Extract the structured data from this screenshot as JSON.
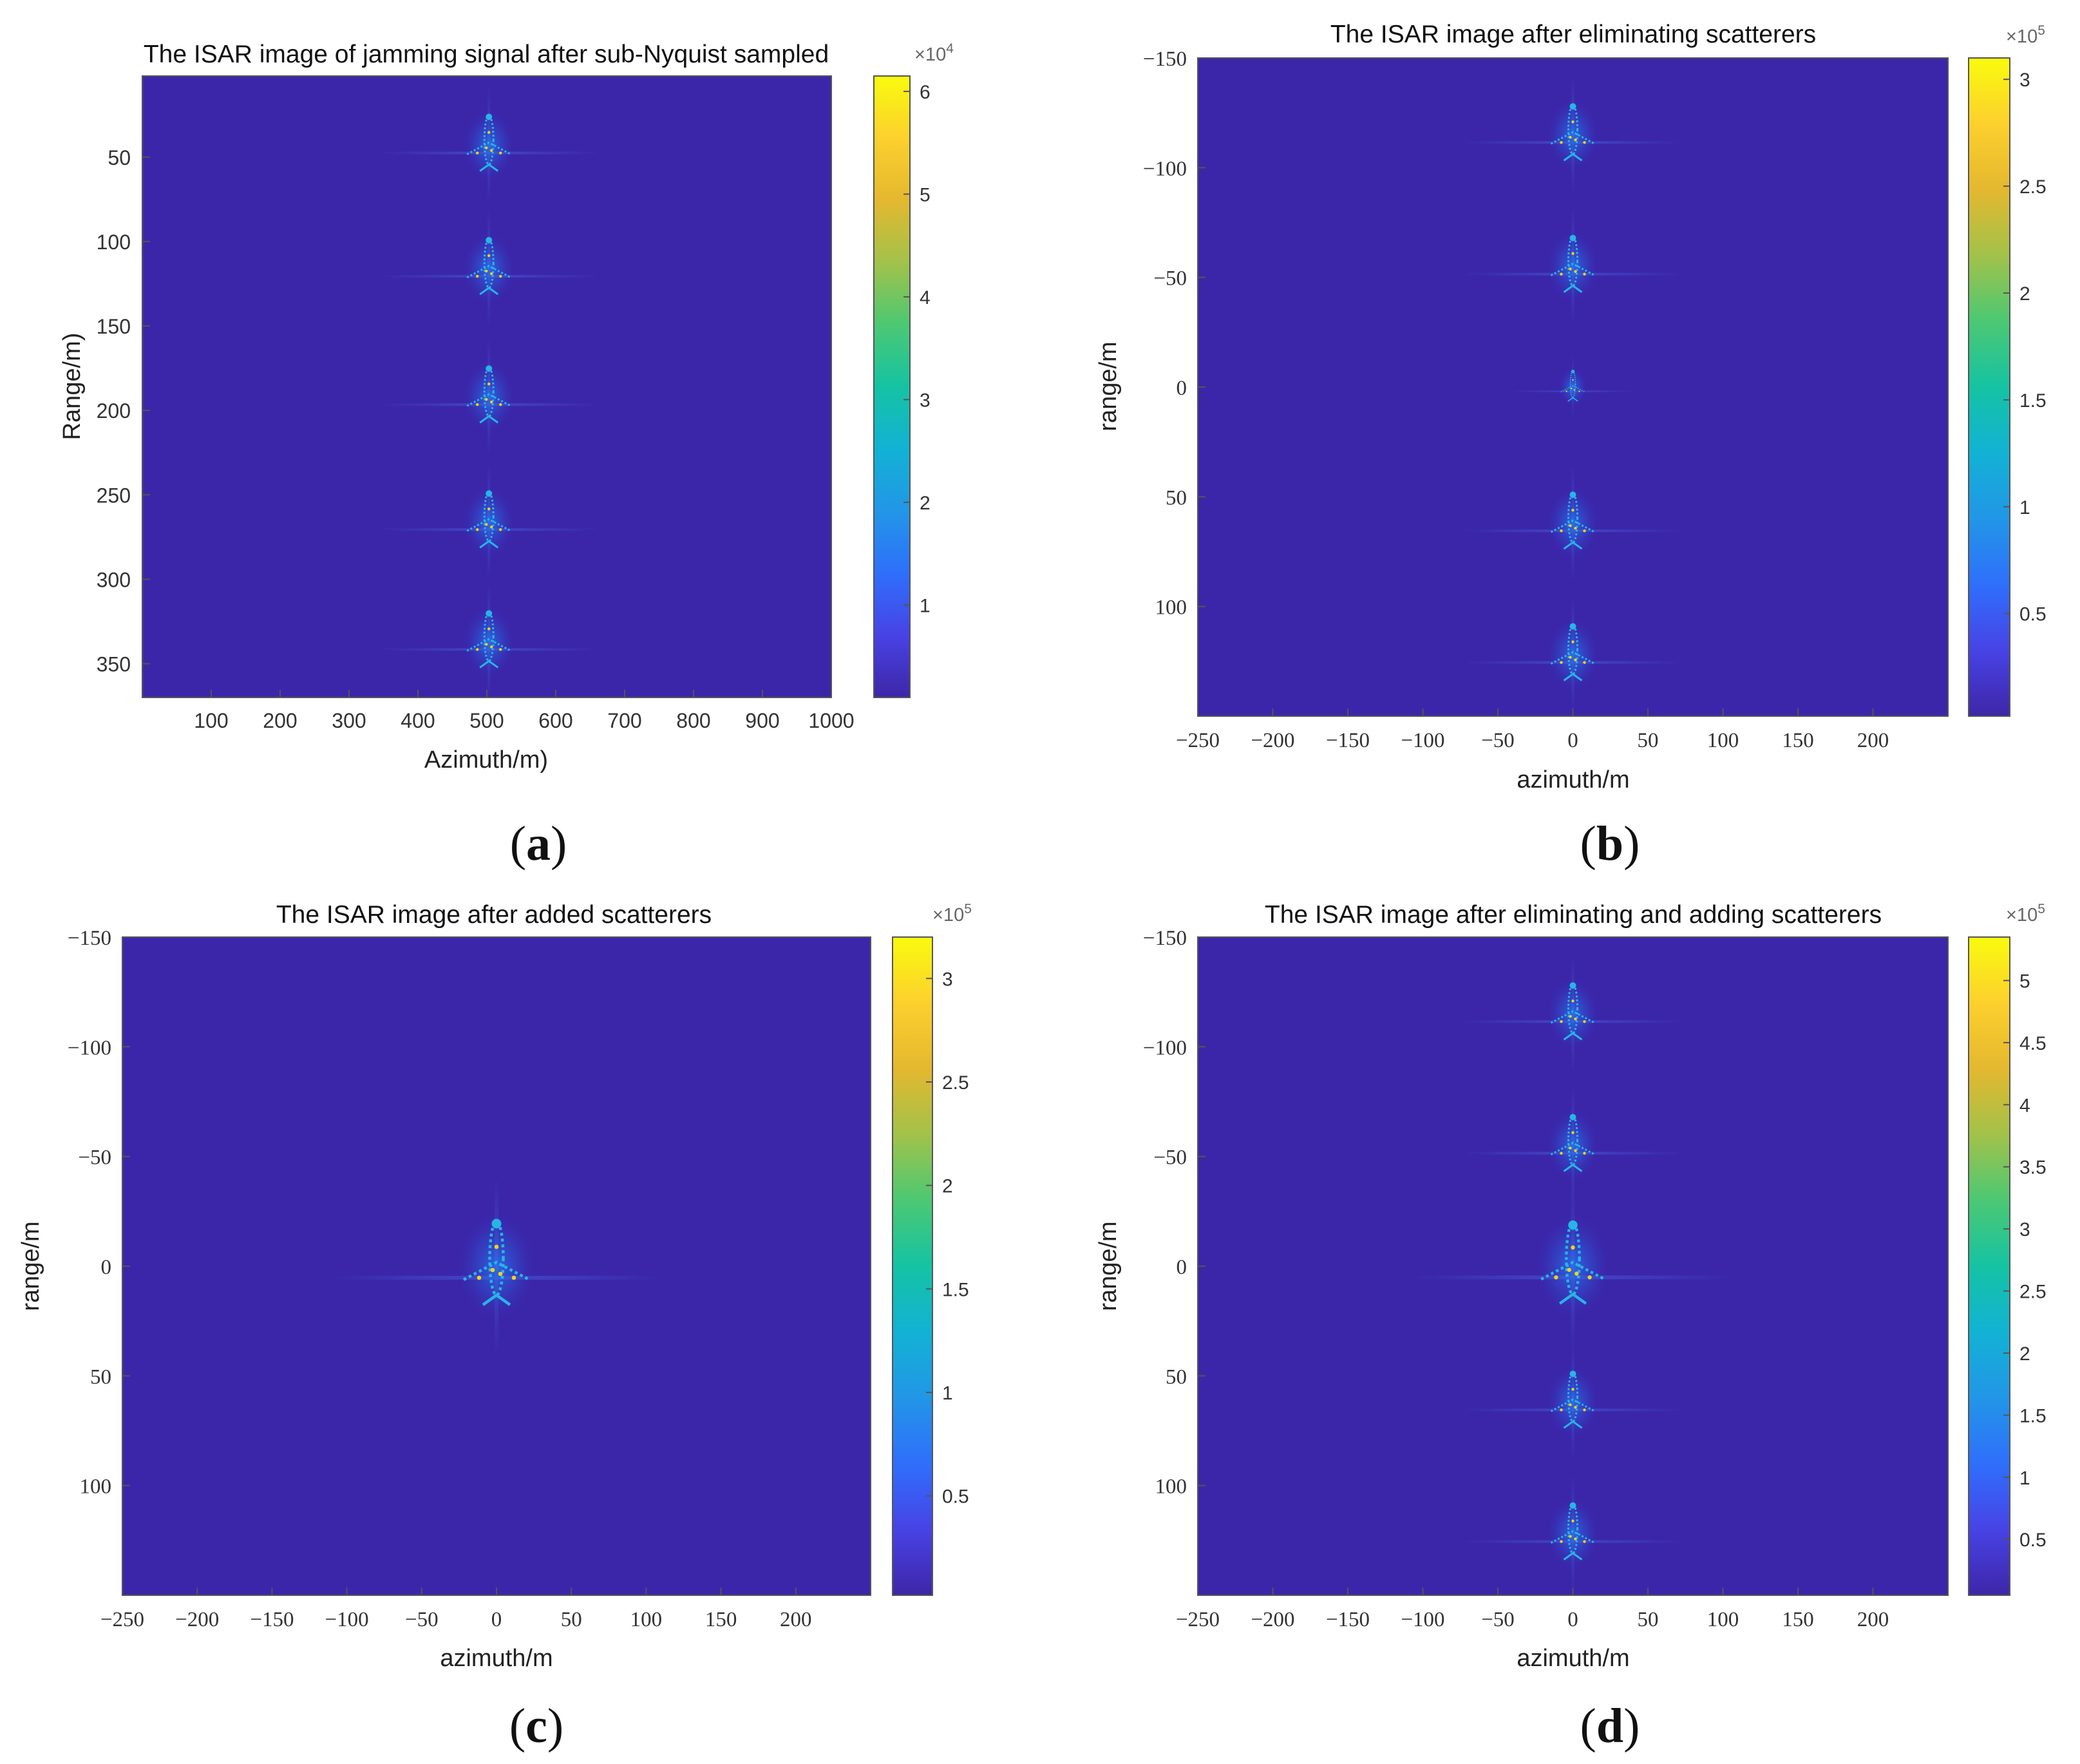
{
  "colors": {
    "background": "#3a24a8",
    "plot_bg": "#3b26aa",
    "glow": "#1e6cf0",
    "core": "#27b5e6",
    "hot": "#f5d21a",
    "axis": "#444444",
    "parula": [
      "#3e26a8",
      "#4743e5",
      "#2f6ffb",
      "#2296e7",
      "#12b2d4",
      "#15c3a3",
      "#4cc873",
      "#a2c24a",
      "#e4b82f",
      "#fcd02d",
      "#f9fb0e"
    ]
  },
  "chart_data": [
    {
      "id": "a",
      "type": "heatmap",
      "title": "The ISAR image of jamming signal after sub-Nyquist sampled",
      "xlabel": "Azimuth/m)",
      "ylabel": "Range/m)",
      "panel_label": "a",
      "xlim": [
        0,
        1000
      ],
      "ylim": [
        370,
        2
      ],
      "y_reversed": true,
      "xticks": [
        100,
        200,
        300,
        400,
        500,
        600,
        700,
        800,
        900,
        1000
      ],
      "yticks": [
        50,
        100,
        150,
        200,
        250,
        300,
        350
      ],
      "xtick_labels": [
        "100",
        "200",
        "300",
        "400",
        "500",
        "600",
        "700",
        "800",
        "900",
        "1000"
      ],
      "ytick_labels": [
        "50",
        "100",
        "150",
        "200",
        "250",
        "300",
        "350"
      ],
      "colorbar": {
        "range": [
          0.1,
          6.15
        ],
        "ticks": [
          1,
          2,
          3,
          4,
          5,
          6
        ],
        "tick_labels": [
          "1",
          "2",
          "3",
          "4",
          "5",
          "6"
        ],
        "multiplier_base": "×10",
        "multiplier_exp": "4"
      },
      "targets": [
        {
          "azimuth": 503,
          "range": 43,
          "scale": 1
        },
        {
          "azimuth": 503,
          "range": 116,
          "scale": 1
        },
        {
          "azimuth": 503,
          "range": 192,
          "scale": 1
        },
        {
          "azimuth": 503,
          "range": 266,
          "scale": 1
        },
        {
          "azimuth": 503,
          "range": 337,
          "scale": 1
        }
      ]
    },
    {
      "id": "b",
      "type": "heatmap",
      "title": "The ISAR image after eliminating scatterers",
      "xlabel": "azimuth/m",
      "ylabel": "range/m",
      "panel_label": "b",
      "xlim": [
        -250,
        250
      ],
      "ylim": [
        -150,
        150
      ],
      "y_reversed": true,
      "xticks": [
        -250,
        -200,
        -150,
        -100,
        -50,
        0,
        50,
        100,
        150,
        200
      ],
      "yticks": [
        -150,
        -100,
        -50,
        0,
        50,
        100
      ],
      "xtick_labels": [
        "−250",
        "−200",
        "−150",
        "−100",
        "−50",
        "0",
        "50",
        "100",
        "150",
        "200"
      ],
      "ytick_labels": [
        "−150",
        "−100",
        "−50",
        "0",
        "50",
        "100"
      ],
      "colorbar": {
        "range": [
          0.02,
          3.1
        ],
        "ticks": [
          0.5,
          1,
          1.5,
          2,
          2.5,
          3
        ],
        "tick_labels": [
          "0.5",
          "1",
          "1.5",
          "2",
          "2.5",
          "3"
        ],
        "multiplier_base": "×10",
        "multiplier_exp": "5"
      },
      "targets": [
        {
          "azimuth": 0,
          "range": -115,
          "scale": 1
        },
        {
          "azimuth": 0,
          "range": -55,
          "scale": 1
        },
        {
          "azimuth": 0,
          "range": 0,
          "scale": 0.55
        },
        {
          "azimuth": 0,
          "range": 62,
          "scale": 1
        },
        {
          "azimuth": 0,
          "range": 122,
          "scale": 1
        }
      ]
    },
    {
      "id": "c",
      "type": "heatmap",
      "title": "The ISAR image after added scatterers",
      "xlabel": "azimuth/m",
      "ylabel": "range/m",
      "panel_label": "c",
      "xlim": [
        -250,
        250
      ],
      "ylim": [
        -150,
        150
      ],
      "y_reversed": true,
      "xticks": [
        -250,
        -200,
        -150,
        -100,
        -50,
        0,
        50,
        100,
        150,
        200
      ],
      "yticks": [
        -150,
        -100,
        -50,
        0,
        50,
        100
      ],
      "xtick_labels": [
        "−250",
        "−200",
        "−150",
        "−100",
        "−50",
        "0",
        "50",
        "100",
        "150",
        "200"
      ],
      "ytick_labels": [
        "−150",
        "−100",
        "−50",
        "0",
        "50",
        "100"
      ],
      "colorbar": {
        "range": [
          0.02,
          3.2
        ],
        "ticks": [
          0.5,
          1,
          1.5,
          2,
          2.5,
          3
        ],
        "tick_labels": [
          "0.5",
          "1",
          "1.5",
          "2",
          "2.5",
          "3"
        ],
        "multiplier_base": "×10",
        "multiplier_exp": "5"
      },
      "targets": [
        {
          "azimuth": 0,
          "range": 0,
          "scale": 1.5
        }
      ]
    },
    {
      "id": "d",
      "type": "heatmap",
      "title": "The ISAR image after eliminating and adding scatterers",
      "xlabel": "azimuth/m",
      "ylabel": "range/m",
      "panel_label": "d",
      "xlim": [
        -250,
        250
      ],
      "ylim": [
        -150,
        150
      ],
      "y_reversed": true,
      "xticks": [
        -250,
        -200,
        -150,
        -100,
        -50,
        0,
        50,
        100,
        150,
        200
      ],
      "yticks": [
        -150,
        -100,
        -50,
        0,
        50,
        100
      ],
      "xtick_labels": [
        "−250",
        "−200",
        "−150",
        "−100",
        "−50",
        "0",
        "50",
        "100",
        "150",
        "200"
      ],
      "ytick_labels": [
        "−150",
        "−100",
        "−50",
        "0",
        "50",
        "100"
      ],
      "colorbar": {
        "range": [
          0.05,
          5.35
        ],
        "ticks": [
          0.5,
          1,
          1.5,
          2,
          2.5,
          3,
          3.5,
          4,
          4.5,
          5
        ],
        "tick_labels": [
          "0.5",
          "1",
          "1.5",
          "2",
          "2.5",
          "3",
          "3.5",
          "4",
          "4.5",
          "5"
        ],
        "multiplier_base": "×10",
        "multiplier_exp": "5"
      },
      "targets": [
        {
          "azimuth": 0,
          "range": -115,
          "scale": 1
        },
        {
          "azimuth": 0,
          "range": -55,
          "scale": 1
        },
        {
          "azimuth": 0,
          "range": 0,
          "scale": 1.45
        },
        {
          "azimuth": 0,
          "range": 62,
          "scale": 1
        },
        {
          "azimuth": 0,
          "range": 122,
          "scale": 1
        }
      ]
    }
  ]
}
